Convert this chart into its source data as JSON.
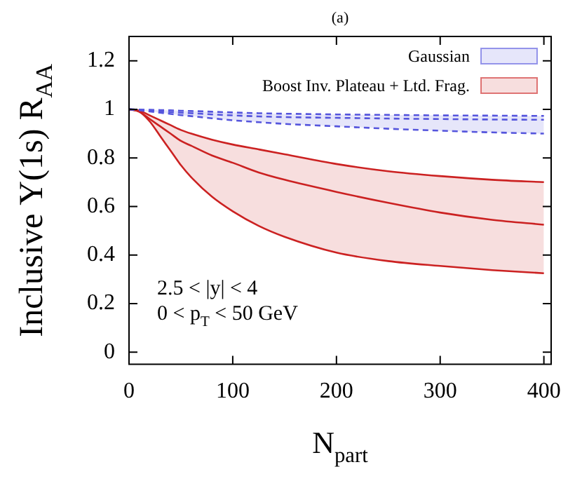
{
  "chart_data": {
    "type": "line",
    "title": "(a)",
    "xlabel": "N$_{part}$",
    "ylabel": "Inclusive Υ(1s) R$_{AA}$",
    "x": [
      0,
      10,
      20,
      30,
      40,
      50,
      60,
      80,
      100,
      125,
      150,
      200,
      250,
      300,
      350,
      400
    ],
    "series": [
      {
        "name": "Gaussian",
        "color": "#5555dd",
        "line_style": "dashed",
        "values": [
          1,
          0.998,
          0.995,
          0.992,
          0.989,
          0.986,
          0.984,
          0.979,
          0.975,
          0.971,
          0.968,
          0.965,
          0.962,
          0.96,
          0.958,
          0.957
        ],
        "lower": [
          1,
          0.996,
          0.991,
          0.986,
          0.981,
          0.976,
          0.972,
          0.963,
          0.955,
          0.947,
          0.94,
          0.93,
          0.92,
          0.912,
          0.905,
          0.9
        ],
        "upper": [
          1,
          0.999,
          0.998,
          0.997,
          0.996,
          0.994,
          0.993,
          0.99,
          0.987,
          0.984,
          0.982,
          0.979,
          0.977,
          0.975,
          0.974,
          0.973
        ]
      },
      {
        "color": "#5555dd",
        "line_style": "dashed",
        "values": [
          1,
          0.996,
          0.991,
          0.986,
          0.981,
          0.976,
          0.972,
          0.963,
          0.955,
          0.947,
          0.94,
          0.93,
          0.92,
          0.912,
          0.905,
          0.9
        ]
      },
      {
        "color": "#5555dd",
        "line_style": "dashed",
        "values": [
          1,
          0.999,
          0.998,
          0.997,
          0.996,
          0.994,
          0.993,
          0.99,
          0.987,
          0.984,
          0.982,
          0.979,
          0.977,
          0.975,
          0.974,
          0.973
        ]
      },
      {
        "name": "Boost Inv. Plateau + Ltd. Frag.",
        "color": "#cc2222",
        "line_style": "solid",
        "values": [
          1,
          0.99,
          0.96,
          0.93,
          0.9,
          0.87,
          0.85,
          0.81,
          0.78,
          0.74,
          0.71,
          0.66,
          0.615,
          0.575,
          0.545,
          0.525
        ],
        "lower": [
          1,
          0.99,
          0.95,
          0.89,
          0.83,
          0.77,
          0.72,
          0.64,
          0.58,
          0.52,
          0.475,
          0.41,
          0.375,
          0.355,
          0.338,
          0.325
        ],
        "upper": [
          1,
          0.995,
          0.975,
          0.955,
          0.935,
          0.915,
          0.9,
          0.875,
          0.855,
          0.835,
          0.815,
          0.775,
          0.745,
          0.725,
          0.71,
          0.7
        ]
      },
      {
        "color": "#cc2222",
        "line_style": "solid",
        "values": [
          1,
          0.99,
          0.95,
          0.89,
          0.83,
          0.77,
          0.72,
          0.64,
          0.58,
          0.52,
          0.475,
          0.41,
          0.375,
          0.355,
          0.338,
          0.325
        ]
      },
      {
        "color": "#cc2222",
        "line_style": "solid",
        "values": [
          1,
          0.995,
          0.975,
          0.955,
          0.935,
          0.915,
          0.9,
          0.875,
          0.855,
          0.835,
          0.815,
          0.775,
          0.745,
          0.725,
          0.71,
          0.7
        ]
      }
    ],
    "xlim": [
      0,
      407
    ],
    "ylim": [
      -0.05,
      1.3
    ],
    "xticks": [
      0,
      100,
      200,
      300,
      400
    ],
    "yticks": [
      0,
      0.2,
      0.4,
      0.6,
      0.8,
      1,
      1.2
    ],
    "annotations": [
      "2.5 < |y| < 4",
      "0 < p$_{T}$ < 50 GeV"
    ],
    "legend": "top right",
    "grid": false,
    "marker": "none"
  }
}
